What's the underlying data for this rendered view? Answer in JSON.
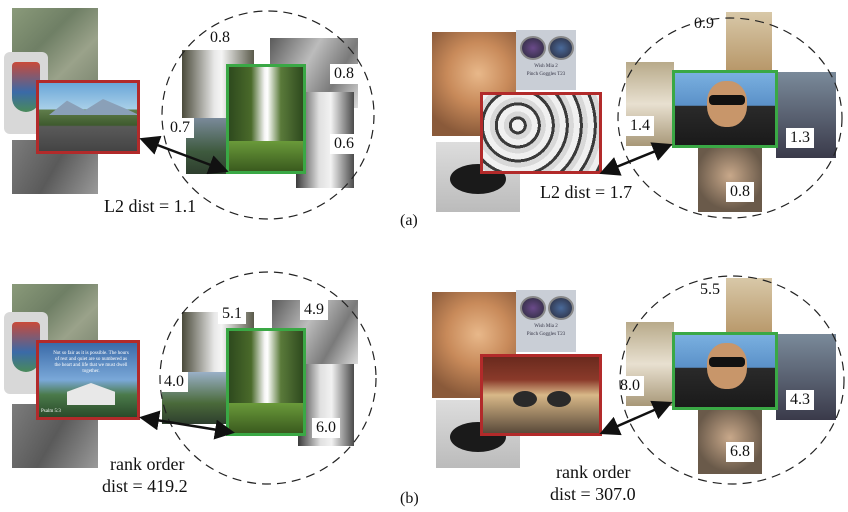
{
  "panels": {
    "a": {
      "label": "(a)",
      "left": {
        "neighbor_scores": [
          "0.8",
          "0.8",
          "0.7",
          "0.6"
        ],
        "distance_caption": "L2 dist = 1.1"
      },
      "right": {
        "neighbor_scores": [
          "0.9",
          "1.4",
          "1.3",
          "0.8"
        ],
        "distance_caption": "L2 dist = 1.7",
        "book_cover_title": "Wish Mia 2",
        "book_cover_sub": "Pinch Goggles T23"
      }
    },
    "b": {
      "label": "(b)",
      "left": {
        "neighbor_scores": [
          "5.1",
          "4.9",
          "4.0",
          "6.0"
        ],
        "distance_caption_line1": "rank order",
        "distance_caption_line2": "dist = 419.2",
        "poster_text": "Not so fair as it is possible. The hours of rest and quiet are so numbered as the heart and life that we must dwell together.",
        "poster_footer": "Psalm 5:3"
      },
      "right": {
        "neighbor_scores": [
          "5.5",
          "8.0",
          "4.3",
          "6.8"
        ],
        "distance_caption_line1": "rank order",
        "distance_caption_line2": "dist = 307.0",
        "book_cover_title": "Wish Mia 2",
        "book_cover_sub": "Pinch Goggles T23"
      }
    }
  },
  "colors": {
    "query_frame": "#b22a2a",
    "anchor_frame": "#3aa845",
    "ellipse": "#222222",
    "arrow": "#111111"
  }
}
